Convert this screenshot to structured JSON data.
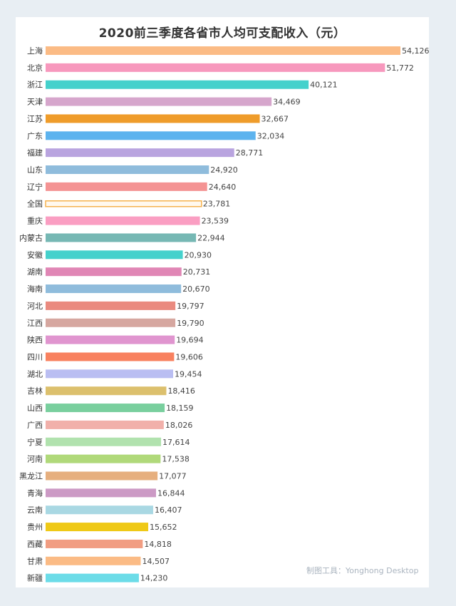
{
  "chart_data": {
    "type": "bar",
    "orientation": "horizontal",
    "title": "2020前三季度各省市人均可支配收入（元）",
    "categories": [
      "上海",
      "北京",
      "浙江",
      "天津",
      "江苏",
      "广东",
      "福建",
      "山东",
      "辽宁",
      "全国",
      "重庆",
      "内蒙古",
      "安徽",
      "湖南",
      "海南",
      "河北",
      "江西",
      "陕西",
      "四川",
      "湖北",
      "吉林",
      "山西",
      "广西",
      "宁夏",
      "河南",
      "黑龙江",
      "青海",
      "云南",
      "贵州",
      "西藏",
      "甘肃",
      "新疆"
    ],
    "values": [
      54126,
      51772,
      40121,
      34469,
      32667,
      32034,
      28771,
      24920,
      24640,
      23781,
      23539,
      22944,
      20930,
      20731,
      20670,
      19797,
      19790,
      19694,
      19606,
      19454,
      18416,
      18159,
      18026,
      17614,
      17538,
      17077,
      16844,
      16407,
      15652,
      14818,
      14507,
      14230
    ],
    "value_labels": [
      "54,126",
      "51,772",
      "40,121",
      "34,469",
      "32,667",
      "32,034",
      "28,771",
      "24,920",
      "24,640",
      "23,781",
      "23,539",
      "22,944",
      "20,930",
      "20,731",
      "20,670",
      "19,797",
      "19,790",
      "19,694",
      "19,606",
      "19,454",
      "18,416",
      "18,159",
      "18,026",
      "17,614",
      "17,538",
      "17,077",
      "16,844",
      "16,407",
      "15,652",
      "14,818",
      "14,507",
      "14,230"
    ],
    "colors": [
      "#fbbb85",
      "#f798bd",
      "#45d1cc",
      "#d6a6cc",
      "#ef9c2a",
      "#5db3ee",
      "#b9a4df",
      "#8fbcdc",
      "#f49393",
      "#f6b24e",
      "#fa9ec2",
      "#76b8b4",
      "#45d1cc",
      "#e086b5",
      "#8fbcdc",
      "#ea8a7f",
      "#d6a7a0",
      "#e095cf",
      "#f8815f",
      "#babef2",
      "#dcc06d",
      "#79cf9e",
      "#f1b0aa",
      "#b1e2ae",
      "#b0d97a",
      "#e6af7e",
      "#cc9ac5",
      "#a9d8e3",
      "#efc917",
      "#f19d82",
      "#fbbb85",
      "#6cdce8"
    ],
    "highlight_category": "全国",
    "grid": false,
    "legend": "none"
  },
  "watermark": "制图工具：Yonghong Desktop"
}
